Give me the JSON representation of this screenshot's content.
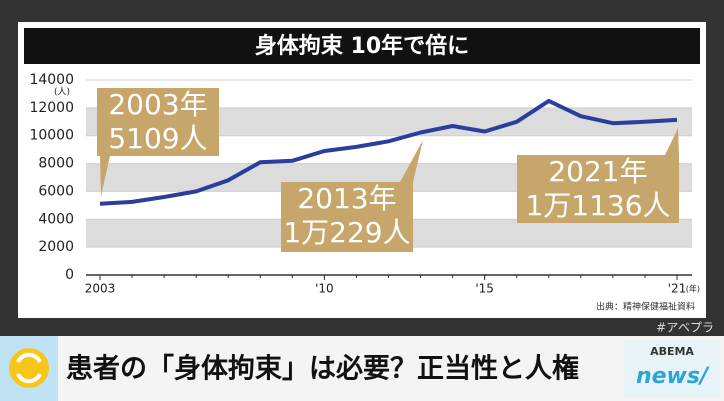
{
  "chart_data": {
    "type": "line",
    "title": "身体拘束 10年で倍に",
    "x": [
      2003,
      2004,
      2005,
      2006,
      2007,
      2008,
      2009,
      2010,
      2011,
      2012,
      2013,
      2014,
      2015,
      2016,
      2017,
      2018,
      2019,
      2020,
      2021
    ],
    "series": [
      {
        "color": "#2b3e9e",
        "values": [
          5109,
          5250,
          5600,
          6000,
          6800,
          8100,
          8200,
          8900,
          9200,
          9600,
          10229,
          10700,
          10300,
          11000,
          12500,
          11400,
          10900,
          11000,
          11136
        ]
      }
    ],
    "xlim": [
      2003,
      2021
    ],
    "xticks": [
      {
        "value": 2003,
        "label": "2003"
      },
      {
        "value": 2010,
        "label": "'10"
      },
      {
        "value": 2015,
        "label": "'15"
      },
      {
        "value": 2021,
        "label": "'21"
      }
    ],
    "ylim": [
      0,
      14000
    ],
    "yticks": [
      0,
      2000,
      4000,
      6000,
      8000,
      10000,
      12000,
      14000
    ],
    "y_unit": "(人)",
    "x_unit": "(年)",
    "source": "出典：精神保健福祉資料",
    "grid": true,
    "annotations": [
      [
        "2003年",
        "5109人"
      ],
      [
        "2013年",
        "1万229人"
      ],
      [
        "2021年",
        "1万1136人"
      ]
    ]
  },
  "banner": {
    "headline": "患者の「身体拘束」は必要？正当性と人権",
    "hashtag": "#アベプラ",
    "logo_top": "ABEMA",
    "logo_bottom": "news/"
  }
}
